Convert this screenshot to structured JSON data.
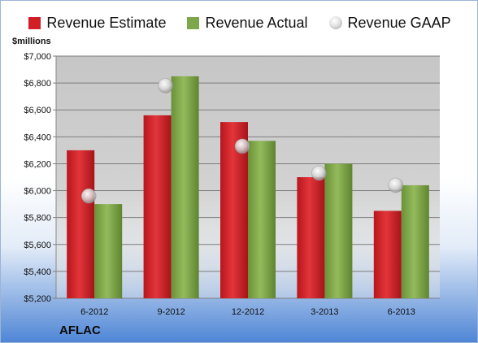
{
  "legend": {
    "estimate_label": "Revenue Estimate",
    "actual_label": "Revenue Actual",
    "gaap_label": "Revenue GAAP"
  },
  "unit_label": "$millions",
  "company": "AFLAC",
  "colors": {
    "estimate": "#d21f25",
    "actual": "#7ea64a",
    "gaap": "#c8c8c8",
    "plot_bg": "#c9c9c9"
  },
  "chart_data": {
    "type": "bar",
    "categories": [
      "6-2012",
      "9-2012",
      "12-2012",
      "3-2013",
      "6-2013"
    ],
    "series": [
      {
        "name": "Revenue Estimate",
        "values": [
          6300,
          6560,
          6510,
          6100,
          5850
        ]
      },
      {
        "name": "Revenue Actual",
        "values": [
          5900,
          6850,
          6370,
          6200,
          6040
        ]
      },
      {
        "name": "Revenue GAAP",
        "marker": "circle",
        "values": [
          5960,
          6780,
          6330,
          6130,
          6040
        ]
      }
    ],
    "ylim": [
      5200,
      7000
    ],
    "yticks": [
      5200,
      5400,
      5600,
      5800,
      6000,
      6200,
      6400,
      6600,
      6800,
      7000
    ],
    "ytick_labels": [
      "$5,200",
      "$5,400",
      "$5,600",
      "$5,800",
      "$6,000",
      "$6,200",
      "$6,400",
      "$6,600",
      "$6,800",
      "$7,000"
    ],
    "ylabel": "$millions",
    "grid": true,
    "legend_position": "top"
  }
}
